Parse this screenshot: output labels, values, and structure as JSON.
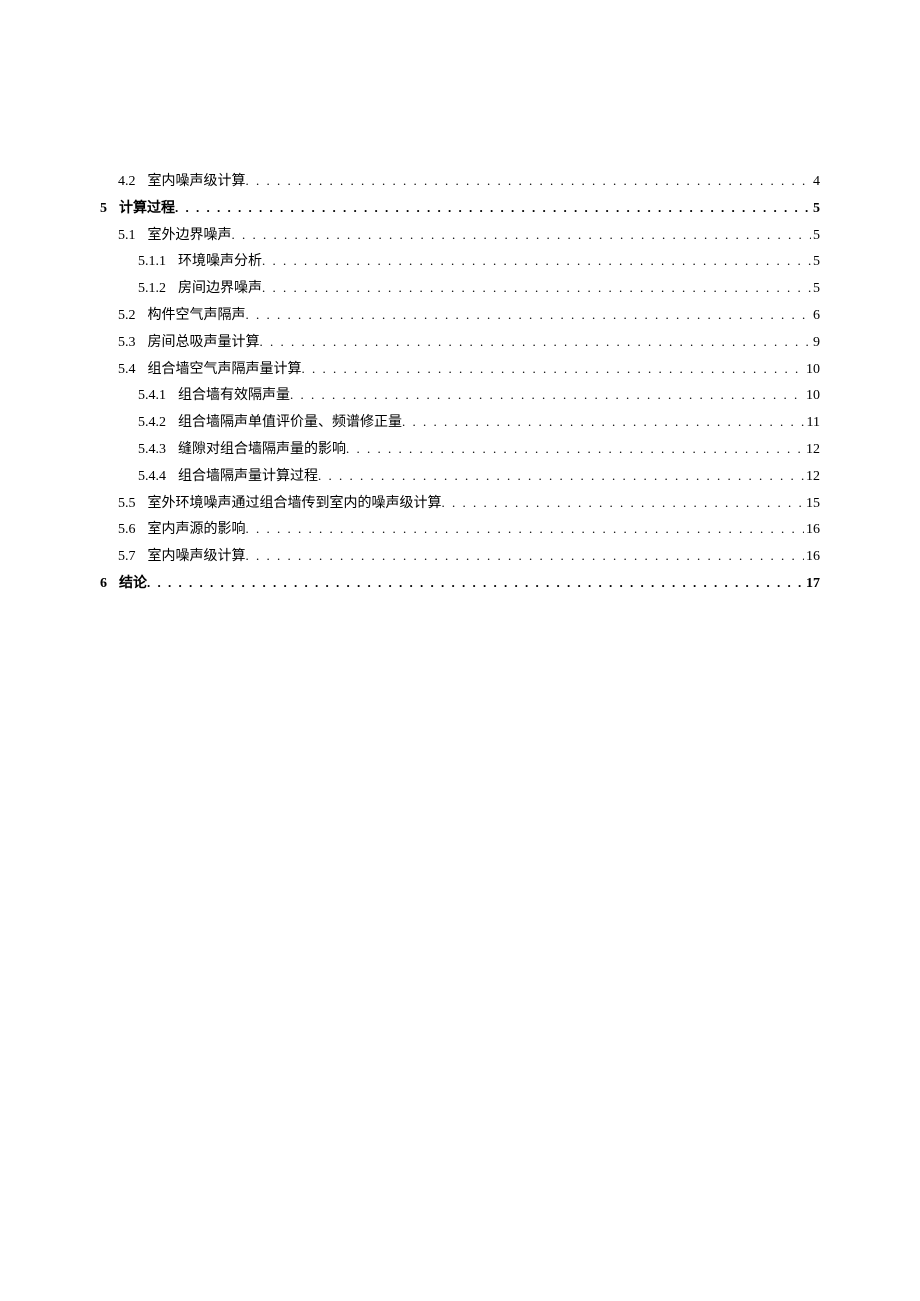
{
  "toc": {
    "entries": [
      {
        "number": "4.2",
        "title": "室内噪声级计算",
        "page": "4",
        "level": 1,
        "bold": false
      },
      {
        "number": "5",
        "title": "计算过程",
        "page": "5",
        "level": 0,
        "bold": true
      },
      {
        "number": "5.1",
        "title": "室外边界噪声",
        "page": "5",
        "level": 1,
        "bold": false
      },
      {
        "number": "5.1.1",
        "title": "环境噪声分析",
        "page": "5",
        "level": 2,
        "bold": false
      },
      {
        "number": "5.1.2",
        "title": "房间边界噪声",
        "page": "5",
        "level": 2,
        "bold": false
      },
      {
        "number": "5.2",
        "title": "构件空气声隔声",
        "page": "6",
        "level": 1,
        "bold": false
      },
      {
        "number": "5.3",
        "title": "房间总吸声量计算",
        "page": "9",
        "level": 1,
        "bold": false
      },
      {
        "number": "5.4",
        "title": "组合墙空气声隔声量计算",
        "page": "10",
        "level": 1,
        "bold": false
      },
      {
        "number": "5.4.1",
        "title": "组合墙有效隔声量",
        "page": "10",
        "level": 2,
        "bold": false
      },
      {
        "number": "5.4.2",
        "title": "组合墙隔声单值评价量、频谱修正量",
        "page": "11",
        "level": 2,
        "bold": false
      },
      {
        "number": "5.4.3",
        "title": "缝隙对组合墙隔声量的影响",
        "page": "12",
        "level": 2,
        "bold": false
      },
      {
        "number": "5.4.4",
        "title": "组合墙隔声量计算过程",
        "page": "12",
        "level": 2,
        "bold": false
      },
      {
        "number": "5.5",
        "title": "室外环境噪声通过组合墙传到室内的噪声级计算",
        "page": "15",
        "level": 1,
        "bold": false
      },
      {
        "number": "5.6",
        "title": "室内声源的影响",
        "page": "16",
        "level": 1,
        "bold": false
      },
      {
        "number": "5.7",
        "title": "室内噪声级计算",
        "page": "16",
        "level": 1,
        "bold": false
      },
      {
        "number": "6",
        "title": "结论",
        "page": "17",
        "level": 0,
        "bold": true
      }
    ]
  }
}
